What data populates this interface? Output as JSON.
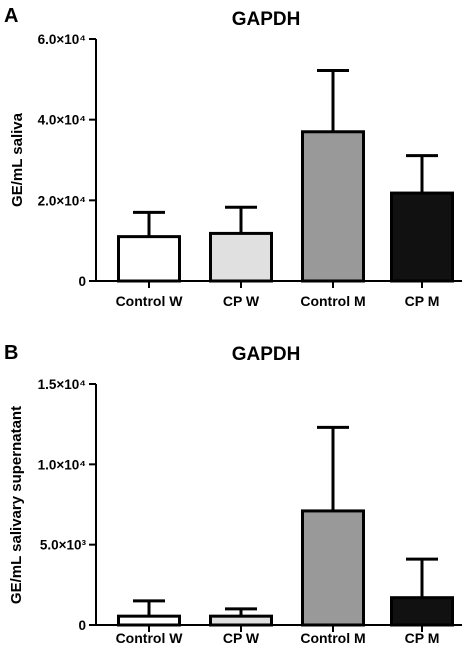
{
  "chart_data": [
    {
      "panel": "A",
      "type": "bar",
      "title": "GAPDH",
      "ylabel": "GE/mL saliva",
      "ylim": [
        0,
        60000
      ],
      "yticks": [
        {
          "value": 0,
          "label": "0"
        },
        {
          "value": 20000,
          "label": "2.0×10⁴"
        },
        {
          "value": 40000,
          "label": "4.0×10⁴"
        },
        {
          "value": 60000,
          "label": "6.0×10⁴"
        }
      ],
      "categories": [
        "Control W",
        "CP W",
        "Control M",
        "CP M"
      ],
      "values": [
        11000,
        11800,
        37000,
        21800
      ],
      "errors": [
        6000,
        6500,
        15200,
        9300
      ],
      "bar_colors": [
        "#ffffff",
        "#e0e0e0",
        "#999999",
        "#111111"
      ]
    },
    {
      "panel": "B",
      "type": "bar",
      "title": "GAPDH",
      "ylabel": "GE/mL salivary supernatant",
      "ylim": [
        0,
        15000
      ],
      "yticks": [
        {
          "value": 0,
          "label": "0"
        },
        {
          "value": 5000,
          "label": "5.0×10³"
        },
        {
          "value": 10000,
          "label": "1.0×10⁴"
        },
        {
          "value": 15000,
          "label": "1.5×10⁴"
        }
      ],
      "categories": [
        "Control W",
        "CP W",
        "Control M",
        "CP M"
      ],
      "values": [
        550,
        550,
        7100,
        1700
      ],
      "errors": [
        950,
        450,
        5200,
        2400
      ],
      "bar_colors": [
        "#ffffff",
        "#e0e0e0",
        "#999999",
        "#111111"
      ]
    }
  ]
}
